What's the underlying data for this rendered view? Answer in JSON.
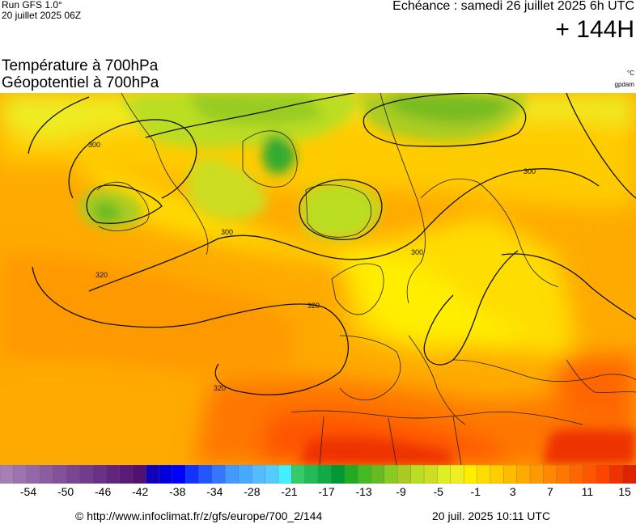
{
  "header": {
    "run_label": "Run GFS 1.0°",
    "run_date": "20 juillet 2025 06Z",
    "valid_time": "Echéance : samedi 26 juillet 2025 6h UTC",
    "lead_time": "+ 144H"
  },
  "titles": {
    "line1": "Température à 700hPa",
    "line2": "Géopotentiel à 700hPa",
    "unit_temp": "°C",
    "unit_geo": "gpdam"
  },
  "map": {
    "region": "europe",
    "contour_labels": [
      "300",
      "300",
      "300",
      "300",
      "320",
      "320",
      "320"
    ]
  },
  "legend": {
    "colors": [
      "#a67fb6",
      "#9d73af",
      "#9468a8",
      "#8b5ca1",
      "#82519a",
      "#7a4593",
      "#723b8c",
      "#6a3085",
      "#62257e",
      "#5a1a77",
      "#521070",
      "#1100bb",
      "#0000dd",
      "#0000ff",
      "#1133ff",
      "#2255ff",
      "#3377ff",
      "#4499ff",
      "#44aaff",
      "#55bbff",
      "#55ccff",
      "#44eeff",
      "#33cc66",
      "#22bb55",
      "#11aa44",
      "#009933",
      "#22aa22",
      "#44bb22",
      "#66bb22",
      "#88cc22",
      "#aacc22",
      "#bbdd22",
      "#ccdd22",
      "#ddee22",
      "#eeee22",
      "#ffee00",
      "#ffdd00",
      "#ffcc00",
      "#ffbb00",
      "#ffaa00",
      "#ff9900",
      "#ff8800",
      "#ff7700",
      "#ff6600",
      "#ff5500",
      "#ff4400",
      "#ee3300",
      "#dd2200"
    ],
    "ticks": [
      "-54",
      "-50",
      "-46",
      "-42",
      "-38",
      "-34",
      "-28",
      "-21",
      "-17",
      "-13",
      "-9",
      "-5",
      "-1",
      "3",
      "7",
      "11",
      "15"
    ]
  },
  "footer": {
    "credit": "© http://www.infoclimat.fr/z/gfs/europe/700_2/144",
    "timestamp": "20 juil. 2025 10:11 UTC"
  }
}
